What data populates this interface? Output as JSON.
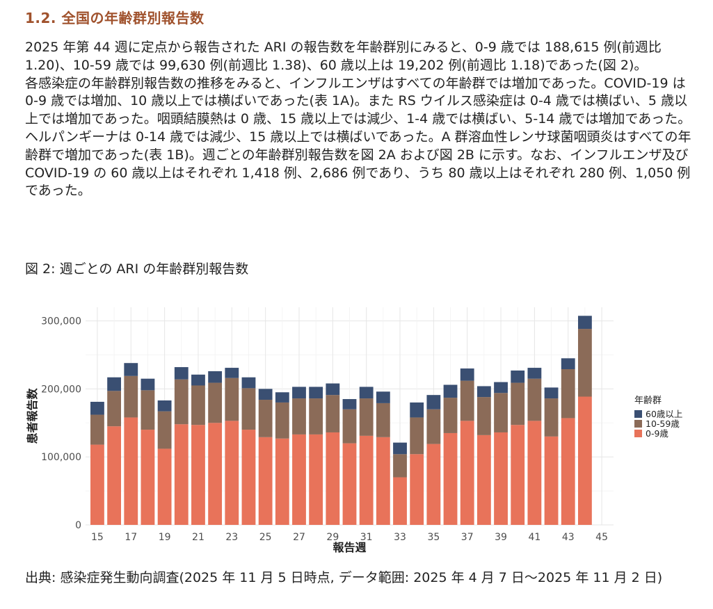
{
  "section": {
    "title": "1.2. 全国の年齢群別報告数"
  },
  "paragraphs": [
    "2025 年第 44 週に定点から報告された ARI の報告数を年齢群別にみると、0-9 歳では 188,615 例(前週比 1.20)、10-59 歳では 99,630 例(前週比 1.38)、60 歳以上は 19,202 例(前週比 1.18)であった(図 2)。",
    "各感染症の年齢群別報告数の推移をみると、インフルエンザはすべての年齢群では増加であった。COVID-19 は 0-9 歳では増加、10 歳以上では横ばいであった(表 1A)。また RS ウイルス感染症は 0-4 歳では横ばい、5 歳以上では増加であった。咽頭結膜熱は 0 歳、15 歳以上では減少、1-4 歳では横ばい、5-14 歳では増加であった。ヘルパンギーナは 0-14 歳では減少、15 歳以上では横ばいであった。A 群溶血性レンサ球菌咽頭炎はすべての年齢群で増加であった(表 1B)。週ごとの年齢群別報告数を図 2A および図 2B に示す。なお、インフルエンザ及び COVID-19 の 60 歳以上はそれぞれ 1,418 例、2,686 例であり、うち 80 歳以上はそれぞれ 280 例、1,050 例であった。"
  ],
  "figure": {
    "caption": "図 2: 週ごとの ARI の年齢群別報告数"
  },
  "source": "出典: 感染症発生動向調査(2025 年 11 月 5 日時点, データ範囲: 2025 年 4 月 7 日〜2025 年 11 月 2 日)",
  "chart_data": {
    "type": "bar",
    "stacked": true,
    "xlabel": "報告週",
    "ylabel": "患者報告数",
    "ylim": [
      0,
      320000
    ],
    "yticks": [
      0,
      100000,
      200000,
      300000
    ],
    "ytick_labels": [
      "0",
      "100,000",
      "200,000",
      "300,000"
    ],
    "xticks": [
      15,
      17,
      19,
      21,
      23,
      25,
      27,
      29,
      31,
      33,
      35,
      37,
      39,
      41,
      43,
      45
    ],
    "xlim": [
      14.3,
      45.7
    ],
    "grid": true,
    "legend": {
      "title": "年齢群",
      "placement": "right"
    },
    "x": [
      15,
      16,
      17,
      18,
      19,
      20,
      21,
      22,
      23,
      24,
      25,
      26,
      27,
      28,
      29,
      30,
      31,
      32,
      33,
      34,
      35,
      36,
      37,
      38,
      39,
      40,
      41,
      42,
      43,
      44
    ],
    "series": [
      {
        "name": "0-9歳",
        "color": "#e8735a",
        "values": [
          118000,
          145000,
          158000,
          140000,
          112000,
          148000,
          147000,
          150000,
          153000,
          140000,
          129000,
          127000,
          133000,
          133000,
          136000,
          120000,
          131000,
          129000,
          70000,
          104000,
          119000,
          135000,
          153000,
          132000,
          136000,
          147000,
          153000,
          130000,
          157000,
          188615
        ]
      },
      {
        "name": "10-59歳",
        "color": "#8b6b58",
        "values": [
          44000,
          52000,
          61000,
          58000,
          55000,
          66000,
          58000,
          59000,
          63000,
          61000,
          55000,
          53000,
          53000,
          53000,
          55000,
          50000,
          55000,
          50000,
          34000,
          54000,
          51000,
          52000,
          59000,
          56000,
          58000,
          62000,
          62000,
          56000,
          72000,
          99630
        ]
      },
      {
        "name": "60歳以上",
        "color": "#3a4f72",
        "values": [
          19000,
          20000,
          19000,
          17000,
          16000,
          18000,
          16000,
          17000,
          15000,
          16000,
          16000,
          15000,
          17000,
          17000,
          17000,
          15000,
          17000,
          17000,
          17000,
          22000,
          21000,
          19000,
          18000,
          16000,
          16000,
          18000,
          16000,
          16000,
          16000,
          19202
        ]
      }
    ]
  }
}
